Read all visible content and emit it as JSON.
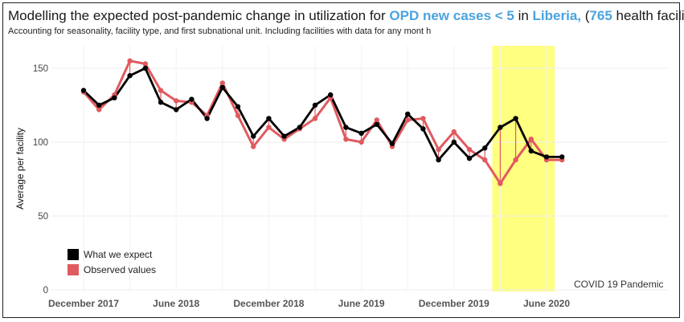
{
  "header": {
    "title_pre": "Modelling the expected post-pandemic change in utilization for ",
    "title_indicator": "OPD new cases < 5",
    "title_in": " in ",
    "title_country": "Liberia,",
    "title_open": " (",
    "title_count": "765",
    "title_post": " health facilities)",
    "subtitle": "Accounting for seasonality, facility type, and first subnational unit. Including facilities with data for any mont h"
  },
  "colors": {
    "expected": "#000000",
    "observed": "#e05a5f",
    "highlight": "#ffff80",
    "accent": "#4aa3df"
  },
  "chart_data": {
    "type": "line",
    "ylabel": "Average per facility",
    "ylim": [
      0,
      165
    ],
    "yticks": [
      0,
      50,
      100,
      150
    ],
    "grid": true,
    "legend_position": "bottom-left",
    "x": [
      "2017-12",
      "2018-01",
      "2018-02",
      "2018-03",
      "2018-04",
      "2018-05",
      "2018-06",
      "2018-07",
      "2018-08",
      "2018-09",
      "2018-10",
      "2018-11",
      "2018-12",
      "2019-01",
      "2019-02",
      "2019-03",
      "2019-04",
      "2019-05",
      "2019-06",
      "2019-07",
      "2019-08",
      "2019-09",
      "2019-10",
      "2019-11",
      "2019-12",
      "2020-01",
      "2020-02",
      "2020-03",
      "2020-04",
      "2020-05",
      "2020-06",
      "2020-07"
    ],
    "xtick_labels": [
      {
        "x": "2017-12",
        "label": "December 2017"
      },
      {
        "x": "2018-06",
        "label": "June 2018"
      },
      {
        "x": "2018-12",
        "label": "December 2018"
      },
      {
        "x": "2019-06",
        "label": "June 2019"
      },
      {
        "x": "2019-12",
        "label": "December 2019"
      },
      {
        "x": "2020-06",
        "label": "June 2020"
      }
    ],
    "series": [
      {
        "name": "What we expect",
        "values": [
          135,
          125,
          130,
          145,
          150,
          127,
          122,
          129,
          116,
          137,
          124,
          104,
          116,
          104,
          110,
          125,
          132,
          110,
          106,
          112,
          99,
          119,
          109,
          88,
          100,
          89,
          96,
          110,
          116,
          94,
          90,
          90
        ]
      },
      {
        "name": "Observed values",
        "values": [
          134,
          122,
          132,
          155,
          153,
          135,
          128,
          127,
          118,
          140,
          118,
          97,
          110,
          102,
          109,
          116,
          130,
          102,
          100,
          115,
          97,
          115,
          116,
          95,
          107,
          95,
          88,
          72,
          88,
          102,
          88,
          88
        ]
      }
    ],
    "annotation": {
      "label": "COVID 19 Pandemic",
      "from": "2020-03",
      "to": "2020-06"
    }
  }
}
